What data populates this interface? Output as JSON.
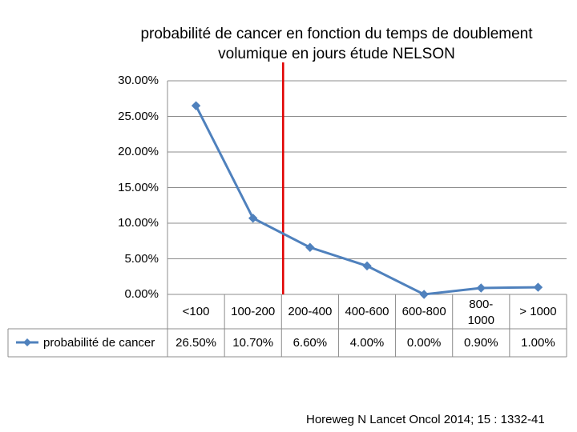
{
  "chart_data": {
    "type": "line",
    "title_line1": "probabilité de cancer en fonction du temps de doublement",
    "title_line2": "volumique en jours étude  NELSON",
    "categories": [
      "<100",
      "100-200",
      "200-400",
      "400-600",
      "600-800",
      "800-1000",
      "> 1000"
    ],
    "category_lines": [
      [
        "<100"
      ],
      [
        "100-200"
      ],
      [
        "200-400"
      ],
      [
        "400-600"
      ],
      [
        "600-800"
      ],
      [
        "800-",
        "1000"
      ],
      [
        "> 1000"
      ]
    ],
    "series": [
      {
        "name": "probabilité de cancer",
        "values": [
          26.5,
          10.7,
          6.6,
          4.0,
          0.0,
          0.9,
          1.0
        ],
        "value_labels": [
          "26.50%",
          "10.70%",
          "6.60%",
          "4.00%",
          "0.00%",
          "0.90%",
          "1.00%"
        ],
        "color": "#4f81bd"
      }
    ],
    "y_ticks": [
      "0.00%",
      "5.00%",
      "10.00%",
      "15.00%",
      "20.00%",
      "25.00%",
      "30.00%"
    ],
    "ylim": [
      0,
      30
    ],
    "grid": true,
    "data_table": true,
    "reference_line": {
      "between_categories": [
        "100-200",
        "200-400"
      ],
      "color": "#e00000"
    }
  },
  "citation": "Horeweg N  Lancet Oncol 2014; 15 : 1332-41"
}
